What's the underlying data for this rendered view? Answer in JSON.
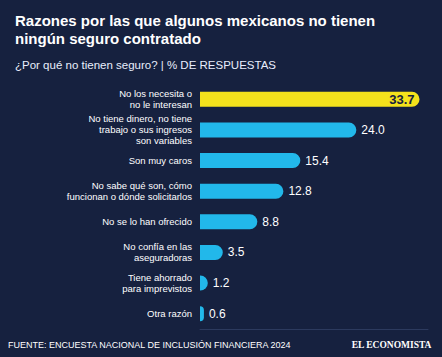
{
  "chart_data": {
    "type": "bar",
    "orientation": "horizontal",
    "title": "Razones por las que algunos mexicanos no tienen ningún seguro contratado",
    "subtitle": "¿Por qué no tienen seguro? | % DE RESPUESTAS",
    "source": "FUENTE: ENCUESTA NACIONAL DE INCLUSIÓN FINANCIERA 2024",
    "credit": "EL ECONOMISTA",
    "categories": [
      "No los necesita o\nno le interesan",
      "No tiene dinero, no tiene\ntrabajo o sus ingresos\nson variables",
      "Son muy caros",
      "No sabe qué son, cómo\nfuncionan o dónde solicitarlos",
      "No se lo han ofrecido",
      "No confía en las\naseguradoras",
      "Tiene ahorrado\npara imprevistos",
      "Otra razón"
    ],
    "values": [
      33.7,
      24.0,
      15.4,
      12.8,
      8.8,
      3.5,
      1.2,
      0.6
    ],
    "value_labels": [
      "33.7",
      "24.0",
      "15.4",
      "12.8",
      "8.8",
      "3.5",
      "1.2",
      "0.6"
    ],
    "colors": [
      "#f4e21c",
      "#22b8ea",
      "#22b8ea",
      "#22b8ea",
      "#22b8ea",
      "#22b8ea",
      "#22b8ea",
      "#22b8ea"
    ],
    "xlim": [
      0,
      35
    ],
    "grid": false,
    "data_labels": true,
    "tick_labels": "y"
  }
}
